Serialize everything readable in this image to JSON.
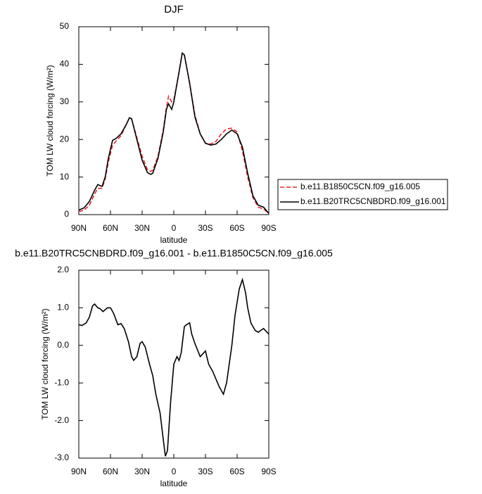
{
  "chart_data": [
    {
      "type": "line",
      "title": "DJF",
      "x_label": "latitude",
      "y_label": "TOM LW cloud forcing (W/m²)",
      "x": [
        90,
        85,
        80,
        75,
        72,
        68,
        65,
        62,
        58,
        55,
        50,
        45,
        42,
        40,
        35,
        30,
        25,
        22,
        20,
        15,
        10,
        7,
        5,
        2,
        0,
        -5,
        -8,
        -10,
        -15,
        -20,
        -25,
        -30,
        -35,
        -40,
        -45,
        -50,
        -55,
        -60,
        -65,
        -70,
        -75,
        -80,
        -85,
        -88,
        -90
      ],
      "series": [
        {
          "name": "b.e11.B1850C5CN.f09_g16.005",
          "color": "#e8262a",
          "dashed": true,
          "values": [
            0.8,
            1.2,
            2.5,
            5.5,
            7,
            7,
            9.5,
            14,
            18.5,
            19.5,
            21,
            24,
            25.8,
            25.5,
            20.5,
            15.5,
            12,
            11.5,
            11.8,
            15.5,
            22.5,
            28.5,
            31.5,
            30,
            30.5,
            38,
            43,
            42.5,
            35,
            26.5,
            21.5,
            19,
            18.8,
            19.5,
            21.5,
            22.8,
            23,
            22,
            17,
            10,
            4.5,
            2,
            1.5,
            0.8,
            0.2
          ]
        },
        {
          "name": "b.e11.B20TRC5CNBDRD.f09_g16.001",
          "color": "#000000",
          "dashed": false,
          "values": [
            1.2,
            1.8,
            3.5,
            6.5,
            8,
            7.5,
            10,
            15,
            19.8,
            20.2,
            21.5,
            24,
            25.8,
            25.5,
            20,
            14.5,
            11.2,
            10.7,
            11,
            15,
            22,
            28,
            29.5,
            28,
            30,
            38,
            43,
            42.5,
            35,
            26,
            21.5,
            19,
            18.5,
            18.8,
            20,
            21.5,
            22.5,
            21.5,
            18,
            11,
            5,
            2.5,
            2,
            1,
            0.3
          ]
        }
      ],
      "xlim": [
        90,
        -90
      ],
      "xticks": [
        {
          "value": 90,
          "label": "90N"
        },
        {
          "value": 60,
          "label": "60N"
        },
        {
          "value": 30,
          "label": "30N"
        },
        0,
        {
          "value": -30,
          "label": "30S"
        },
        {
          "value": -60,
          "label": "60S"
        },
        {
          "value": -90,
          "label": "90S"
        }
      ],
      "ylim": [
        0,
        50
      ],
      "yticks": [
        0,
        10,
        20,
        30,
        40,
        50
      ],
      "legend": "right"
    },
    {
      "type": "line",
      "title": "b.e11.B20TRC5CNBDRD.f09_g16.001 - b.e11.B1850C5CN.f09_g16.005",
      "x_label": "latitude",
      "y_label": "TOM LW cloud forcing (W/m²)",
      "x": [
        90,
        87,
        83,
        80,
        77,
        75,
        72,
        70,
        67,
        63,
        60,
        57,
        53,
        50,
        47,
        43,
        40,
        38,
        35,
        32,
        30,
        27,
        23,
        20,
        17,
        13,
        10,
        8,
        6,
        3,
        0,
        -3,
        -5,
        -7,
        -10,
        -12,
        -15,
        -17,
        -20,
        -25,
        -30,
        -33,
        -37,
        -43,
        -47,
        -50,
        -55,
        -58,
        -62,
        -65,
        -68,
        -70,
        -73,
        -77,
        -80,
        -85,
        -90
      ],
      "series": [
        {
          "color": "#000000",
          "dashed": false,
          "values": [
            0.55,
            0.53,
            0.6,
            0.75,
            1.05,
            1.1,
            1.0,
            0.98,
            0.9,
            1.0,
            1.0,
            0.85,
            0.55,
            0.58,
            0.45,
            0.1,
            -0.3,
            -0.4,
            -0.3,
            0.05,
            0.1,
            -0.05,
            -0.5,
            -0.8,
            -1.3,
            -1.8,
            -2.5,
            -2.95,
            -2.8,
            -1.5,
            -0.5,
            -0.3,
            -0.4,
            -0.2,
            0.5,
            0.55,
            0.6,
            0.3,
            0.05,
            -0.3,
            -0.15,
            -0.5,
            -0.7,
            -1.1,
            -1.3,
            -1.0,
            0.0,
            0.8,
            1.5,
            1.75,
            1.4,
            1.0,
            0.6,
            0.4,
            0.35,
            0.45,
            0.3
          ]
        }
      ],
      "xlim": [
        90,
        -90
      ],
      "xticks": [
        {
          "value": 90,
          "label": "90N"
        },
        {
          "value": 60,
          "label": "60N"
        },
        {
          "value": 30,
          "label": "30N"
        },
        0,
        {
          "value": -30,
          "label": "30S"
        },
        {
          "value": -60,
          "label": "60S"
        },
        {
          "value": -90,
          "label": "90S"
        }
      ],
      "ylim": [
        -3,
        2
      ],
      "yticks": [
        {
          "value": 2,
          "label": "2.0"
        },
        {
          "value": 1,
          "label": "1.0"
        },
        {
          "value": 0,
          "label": "0.0"
        },
        {
          "value": -1,
          "label": "-1.0"
        },
        {
          "value": -2,
          "label": "-2.0"
        },
        {
          "value": -3,
          "label": "-3.0"
        }
      ]
    }
  ]
}
